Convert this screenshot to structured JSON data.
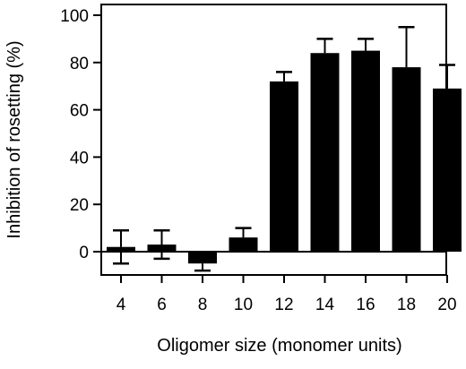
{
  "chart_data": {
    "type": "bar",
    "title": "",
    "xlabel": "Oligomer size (monomer units)",
    "ylabel": "Inhibition of rosetting (%)",
    "categories": [
      "4",
      "6",
      "8",
      "10",
      "12",
      "14",
      "16",
      "18",
      "20"
    ],
    "values": [
      2,
      3,
      -5,
      6,
      72,
      84,
      85,
      78,
      69
    ],
    "error_bars": [
      {
        "upper": 9,
        "lower": -5
      },
      {
        "upper": 9,
        "lower": -3
      },
      {
        "upper": null,
        "lower": -8
      },
      {
        "upper": 10,
        "lower": null
      },
      {
        "upper": 76,
        "lower": null
      },
      {
        "upper": 90,
        "lower": null
      },
      {
        "upper": 90,
        "lower": null
      },
      {
        "upper": 95,
        "lower": null
      },
      {
        "upper": 79,
        "lower": null
      }
    ],
    "ylim": [
      -10,
      100
    ],
    "yticks": [
      "0",
      "20",
      "40",
      "60",
      "80",
      "100"
    ],
    "zero_line": true,
    "grid": false,
    "bar_color": "#000000"
  }
}
